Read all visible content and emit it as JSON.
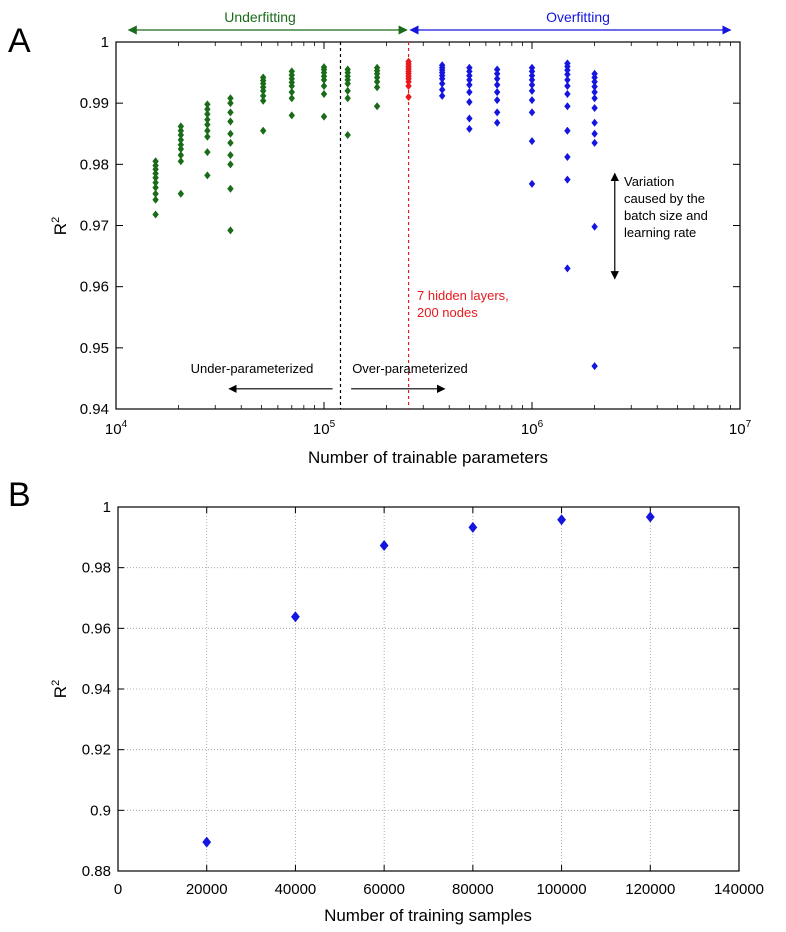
{
  "chart_data": [
    {
      "panel_label": "A",
      "type": "scatter",
      "xscale": "log",
      "xlim": [
        10000,
        10000000
      ],
      "ylim": [
        0.94,
        1.0
      ],
      "xlabel": "Number of trainable parameters",
      "ylabel": "R",
      "ylabel_sup": "2",
      "grid": false,
      "xticks": [
        {
          "base": "10",
          "exp": "4",
          "value": 10000
        },
        {
          "base": "10",
          "exp": "5",
          "value": 100000
        },
        {
          "base": "10",
          "exp": "6",
          "value": 1000000
        },
        {
          "base": "10",
          "exp": "7",
          "value": 10000000
        }
      ],
      "yticks": [
        "0.94",
        "0.95",
        "0.96",
        "0.97",
        "0.98",
        "0.99",
        "1"
      ],
      "series": [
        {
          "color": "#1a6b1a",
          "groups": [
            {
              "x": 15500,
              "y": [
                0.9805,
                0.9798,
                0.9792,
                0.9785,
                0.9778,
                0.977,
                0.9762,
                0.9752,
                0.9742,
                0.9718
              ]
            },
            {
              "x": 20500,
              "y": [
                0.9862,
                0.9855,
                0.9848,
                0.984,
                0.9832,
                0.9825,
                0.9815,
                0.9805,
                0.9752
              ]
            },
            {
              "x": 27500,
              "y": [
                0.9898,
                0.989,
                0.9882,
                0.9873,
                0.9865,
                0.9855,
                0.9845,
                0.982,
                0.9782
              ]
            },
            {
              "x": 35500,
              "y": [
                0.9908,
                0.99,
                0.9885,
                0.987,
                0.985,
                0.9835,
                0.9815,
                0.98,
                0.976,
                0.9692
              ]
            },
            {
              "x": 51000,
              "y": [
                0.9942,
                0.9937,
                0.9932,
                0.9926,
                0.992,
                0.9912,
                0.9904,
                0.9855
              ]
            },
            {
              "x": 70000,
              "y": [
                0.9952,
                0.9946,
                0.994,
                0.9934,
                0.9928,
                0.9918,
                0.9908,
                0.988
              ]
            },
            {
              "x": 100000,
              "y": [
                0.9959,
                0.9955,
                0.995,
                0.9944,
                0.9938,
                0.9928,
                0.9915,
                0.9878
              ]
            },
            {
              "x": 130000,
              "y": [
                0.9955,
                0.995,
                0.9944,
                0.9938,
                0.9932,
                0.992,
                0.9908,
                0.9848
              ]
            },
            {
              "x": 180000,
              "y": [
                0.9958,
                0.9953,
                0.9948,
                0.9942,
                0.9935,
                0.9926,
                0.9895
              ]
            }
          ]
        },
        {
          "color": "#e8191c",
          "groups": [
            {
              "x": 255000,
              "y": [
                0.9968,
                0.9964,
                0.996,
                0.9956,
                0.9952,
                0.9948,
                0.9944,
                0.994,
                0.9935,
                0.9928,
                0.991
              ]
            }
          ]
        },
        {
          "color": "#1515e0",
          "groups": [
            {
              "x": 370000,
              "y": [
                0.9962,
                0.9958,
                0.9954,
                0.995,
                0.9945,
                0.994,
                0.9932,
                0.9922,
                0.9912
              ]
            },
            {
              "x": 500000,
              "y": [
                0.9958,
                0.9952,
                0.9945,
                0.9938,
                0.993,
                0.9918,
                0.9902,
                0.9875,
                0.9858
              ]
            },
            {
              "x": 680000,
              "y": [
                0.9955,
                0.9948,
                0.994,
                0.993,
                0.9918,
                0.9905,
                0.9885,
                0.9868
              ]
            },
            {
              "x": 1000000,
              "y": [
                0.9958,
                0.9952,
                0.9945,
                0.9938,
                0.993,
                0.992,
                0.9905,
                0.9885,
                0.9838,
                0.9768
              ]
            },
            {
              "x": 1480000,
              "y": [
                0.9965,
                0.996,
                0.9954,
                0.9947,
                0.9938,
                0.9928,
                0.9915,
                0.9895,
                0.9855,
                0.9812,
                0.9775,
                0.963
              ]
            },
            {
              "x": 2000000,
              "y": [
                0.9948,
                0.9942,
                0.9935,
                0.9927,
                0.9918,
                0.9908,
                0.9892,
                0.9868,
                0.985,
                0.9835,
                0.9698,
                0.947
              ]
            }
          ]
        }
      ],
      "annotations": {
        "underfitting": "Underfitting",
        "overfitting": "Overfitting",
        "under_param": "Under-parameterized",
        "over_param": "Over-parameterized",
        "hidden_line1": "7 hidden layers,",
        "hidden_line2": "200 nodes",
        "variation_line1": "Variation",
        "variation_line2": "caused by the",
        "variation_line3": "batch size and",
        "variation_line4": "learning rate",
        "black_dashed_x": 120000,
        "red_dashed_x": 255000,
        "top_green_arrow_x": [
          11500,
          250000
        ],
        "top_blue_arrow_x": [
          260000,
          9000000
        ],
        "under_param_arrow_x": [
          35000,
          110000
        ],
        "over_param_arrow_x": [
          135000,
          380000
        ],
        "param_arrows_y": 0.9433,
        "variation_arrow_x": 2500000,
        "variation_arrow_y": [
          0.9613,
          0.9785
        ]
      },
      "colors": {
        "underfitting": "#1a6b1a",
        "selected": "#e8191c",
        "overfitting": "#1515e0",
        "black_dashed": "#000000",
        "red_dashed": "#e8191c"
      }
    },
    {
      "panel_label": "B",
      "type": "scatter",
      "xlim": [
        0,
        140000
      ],
      "ylim": [
        0.88,
        1.0
      ],
      "xlabel": "Number of training samples",
      "ylabel": "R",
      "ylabel_sup": "2",
      "grid": true,
      "xticks": [
        "0",
        "20000",
        "40000",
        "60000",
        "80000",
        "100000",
        "120000",
        "140000"
      ],
      "yticks": [
        "0.88",
        "0.9",
        "0.92",
        "0.94",
        "0.96",
        "0.98",
        "1"
      ],
      "series": [
        {
          "color": "#1515e0",
          "x": [
            20000,
            40000,
            60000,
            80000,
            100000,
            120000
          ],
          "y": [
            0.8895,
            0.9638,
            0.9873,
            0.9933,
            0.9958,
            0.9967
          ]
        }
      ]
    }
  ]
}
